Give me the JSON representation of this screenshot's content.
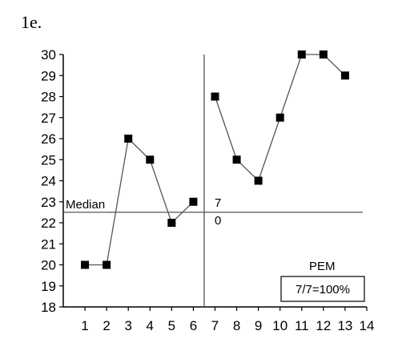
{
  "panel_label": "1e.",
  "chart_data": {
    "type": "line",
    "x": [
      1,
      2,
      3,
      4,
      5,
      6,
      7,
      8,
      9,
      10,
      11,
      12,
      13
    ],
    "series": [
      {
        "values": [
          20,
          20,
          26,
          25,
          22,
          23,
          null,
          null,
          null,
          null,
          null,
          null,
          null
        ]
      },
      {
        "values": [
          null,
          null,
          null,
          null,
          null,
          null,
          28,
          25,
          24,
          27,
          30,
          30,
          29
        ]
      }
    ],
    "xlim": [
      0,
      14
    ],
    "ylim": [
      18,
      30
    ],
    "x_ticks": [
      1,
      2,
      3,
      4,
      5,
      6,
      7,
      8,
      9,
      10,
      11,
      12,
      13,
      14
    ],
    "y_ticks": [
      18,
      19,
      20,
      21,
      22,
      23,
      24,
      25,
      26,
      27,
      28,
      29,
      30
    ],
    "phase_line_x": 6.5,
    "median": {
      "label": "Median",
      "value": 22.5
    },
    "counts": {
      "above": "7",
      "below": "0"
    },
    "pem": {
      "title": "PEM",
      "value": "7/7=100%"
    },
    "colors": {
      "line": "#555555",
      "marker": "#000000",
      "axis": "#000000",
      "reference": "#555555"
    }
  }
}
